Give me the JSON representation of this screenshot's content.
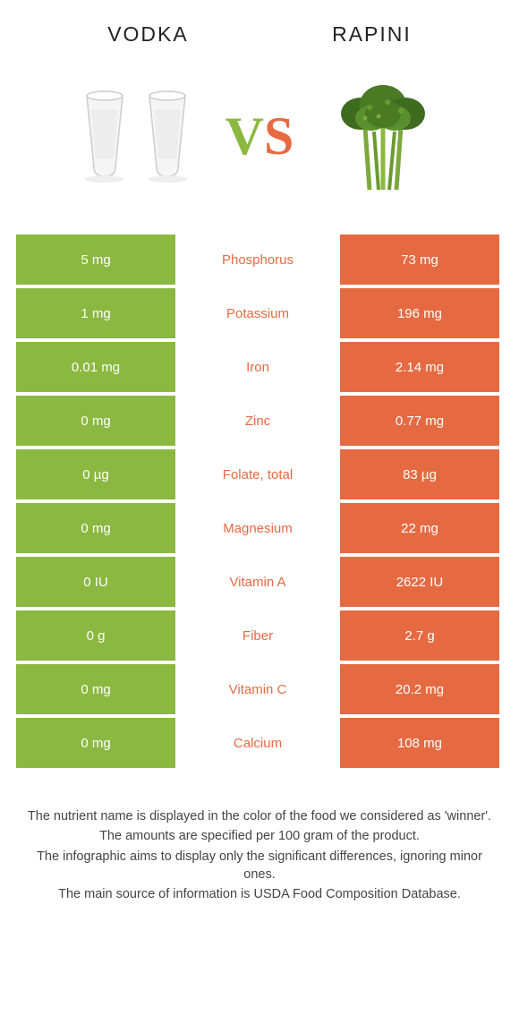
{
  "colors": {
    "green": "#8bb840",
    "orange": "#e56a42",
    "midText": "#e56a42"
  },
  "left": {
    "title": "VODKA"
  },
  "right": {
    "title": "RAPINI"
  },
  "vs": {
    "v": "V",
    "s": "S"
  },
  "rows": [
    {
      "left": "5 mg",
      "mid": "Phosphorus",
      "right": "73 mg",
      "leftColor": "#8bb840",
      "rightColor": "#e56a42",
      "midColor": "#e56a42"
    },
    {
      "left": "1 mg",
      "mid": "Potassium",
      "right": "196 mg",
      "leftColor": "#8bb840",
      "rightColor": "#e56a42",
      "midColor": "#e56a42"
    },
    {
      "left": "0.01 mg",
      "mid": "Iron",
      "right": "2.14 mg",
      "leftColor": "#8bb840",
      "rightColor": "#e56a42",
      "midColor": "#e56a42"
    },
    {
      "left": "0 mg",
      "mid": "Zinc",
      "right": "0.77 mg",
      "leftColor": "#8bb840",
      "rightColor": "#e56a42",
      "midColor": "#e56a42"
    },
    {
      "left": "0 µg",
      "mid": "Folate, total",
      "right": "83 µg",
      "leftColor": "#8bb840",
      "rightColor": "#e56a42",
      "midColor": "#e56a42"
    },
    {
      "left": "0 mg",
      "mid": "Magnesium",
      "right": "22 mg",
      "leftColor": "#8bb840",
      "rightColor": "#e56a42",
      "midColor": "#e56a42"
    },
    {
      "left": "0 IU",
      "mid": "Vitamin A",
      "right": "2622 IU",
      "leftColor": "#8bb840",
      "rightColor": "#e56a42",
      "midColor": "#e56a42"
    },
    {
      "left": "0 g",
      "mid": "Fiber",
      "right": "2.7 g",
      "leftColor": "#8bb840",
      "rightColor": "#e56a42",
      "midColor": "#e56a42"
    },
    {
      "left": "0 mg",
      "mid": "Vitamin C",
      "right": "20.2 mg",
      "leftColor": "#8bb840",
      "rightColor": "#e56a42",
      "midColor": "#e56a42"
    },
    {
      "left": "0 mg",
      "mid": "Calcium",
      "right": "108 mg",
      "leftColor": "#8bb840",
      "rightColor": "#e56a42",
      "midColor": "#e56a42"
    }
  ],
  "footnotes": {
    "l1": "The nutrient name is displayed in the color of the food we considered as 'winner'.",
    "l2": "The amounts are specified per 100 gram of the product.",
    "l3": "The infographic aims to display only the significant differences, ignoring minor ones.",
    "l4": "The main source of information is USDA Food Composition Database."
  }
}
